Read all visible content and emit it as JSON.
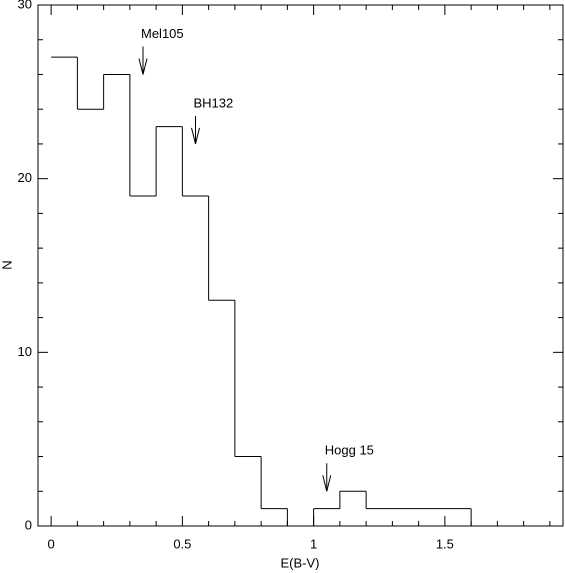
{
  "chart_data": {
    "type": "histogram",
    "xlabel": "E(B-V)",
    "ylabel": "N",
    "bins": [
      0,
      0.1,
      0.2,
      0.3,
      0.4,
      0.5,
      0.6,
      0.7,
      0.8,
      0.9,
      1.0,
      1.1,
      1.2,
      1.3,
      1.4,
      1.5,
      1.6
    ],
    "counts": [
      27,
      24,
      26,
      19,
      23,
      19,
      13,
      4,
      1,
      0,
      1,
      2,
      1,
      1,
      1,
      1
    ],
    "color": "#000000",
    "xlim": [
      -0.05,
      1.95
    ],
    "ylim": [
      0,
      30
    ],
    "xticks": [
      0,
      0.5,
      1,
      1.5
    ],
    "yticks": [
      0,
      10,
      20,
      30
    ],
    "xminorticks": [
      0.1,
      0.2,
      0.3,
      0.4,
      0.6,
      0.7,
      0.8,
      0.9,
      1.1,
      1.2,
      1.3,
      1.4,
      1.6,
      1.7,
      1.8,
      1.9
    ],
    "yminorticks": [
      2,
      4,
      6,
      8,
      12,
      14,
      16,
      18,
      22,
      24,
      26,
      28
    ],
    "annotations": [
      {
        "text": "Mel105",
        "x": 0.35,
        "y": 26
      },
      {
        "text": "BH132",
        "x": 0.55,
        "y": 22
      },
      {
        "text": "Hogg 15",
        "x": 1.05,
        "y": 2
      }
    ]
  }
}
